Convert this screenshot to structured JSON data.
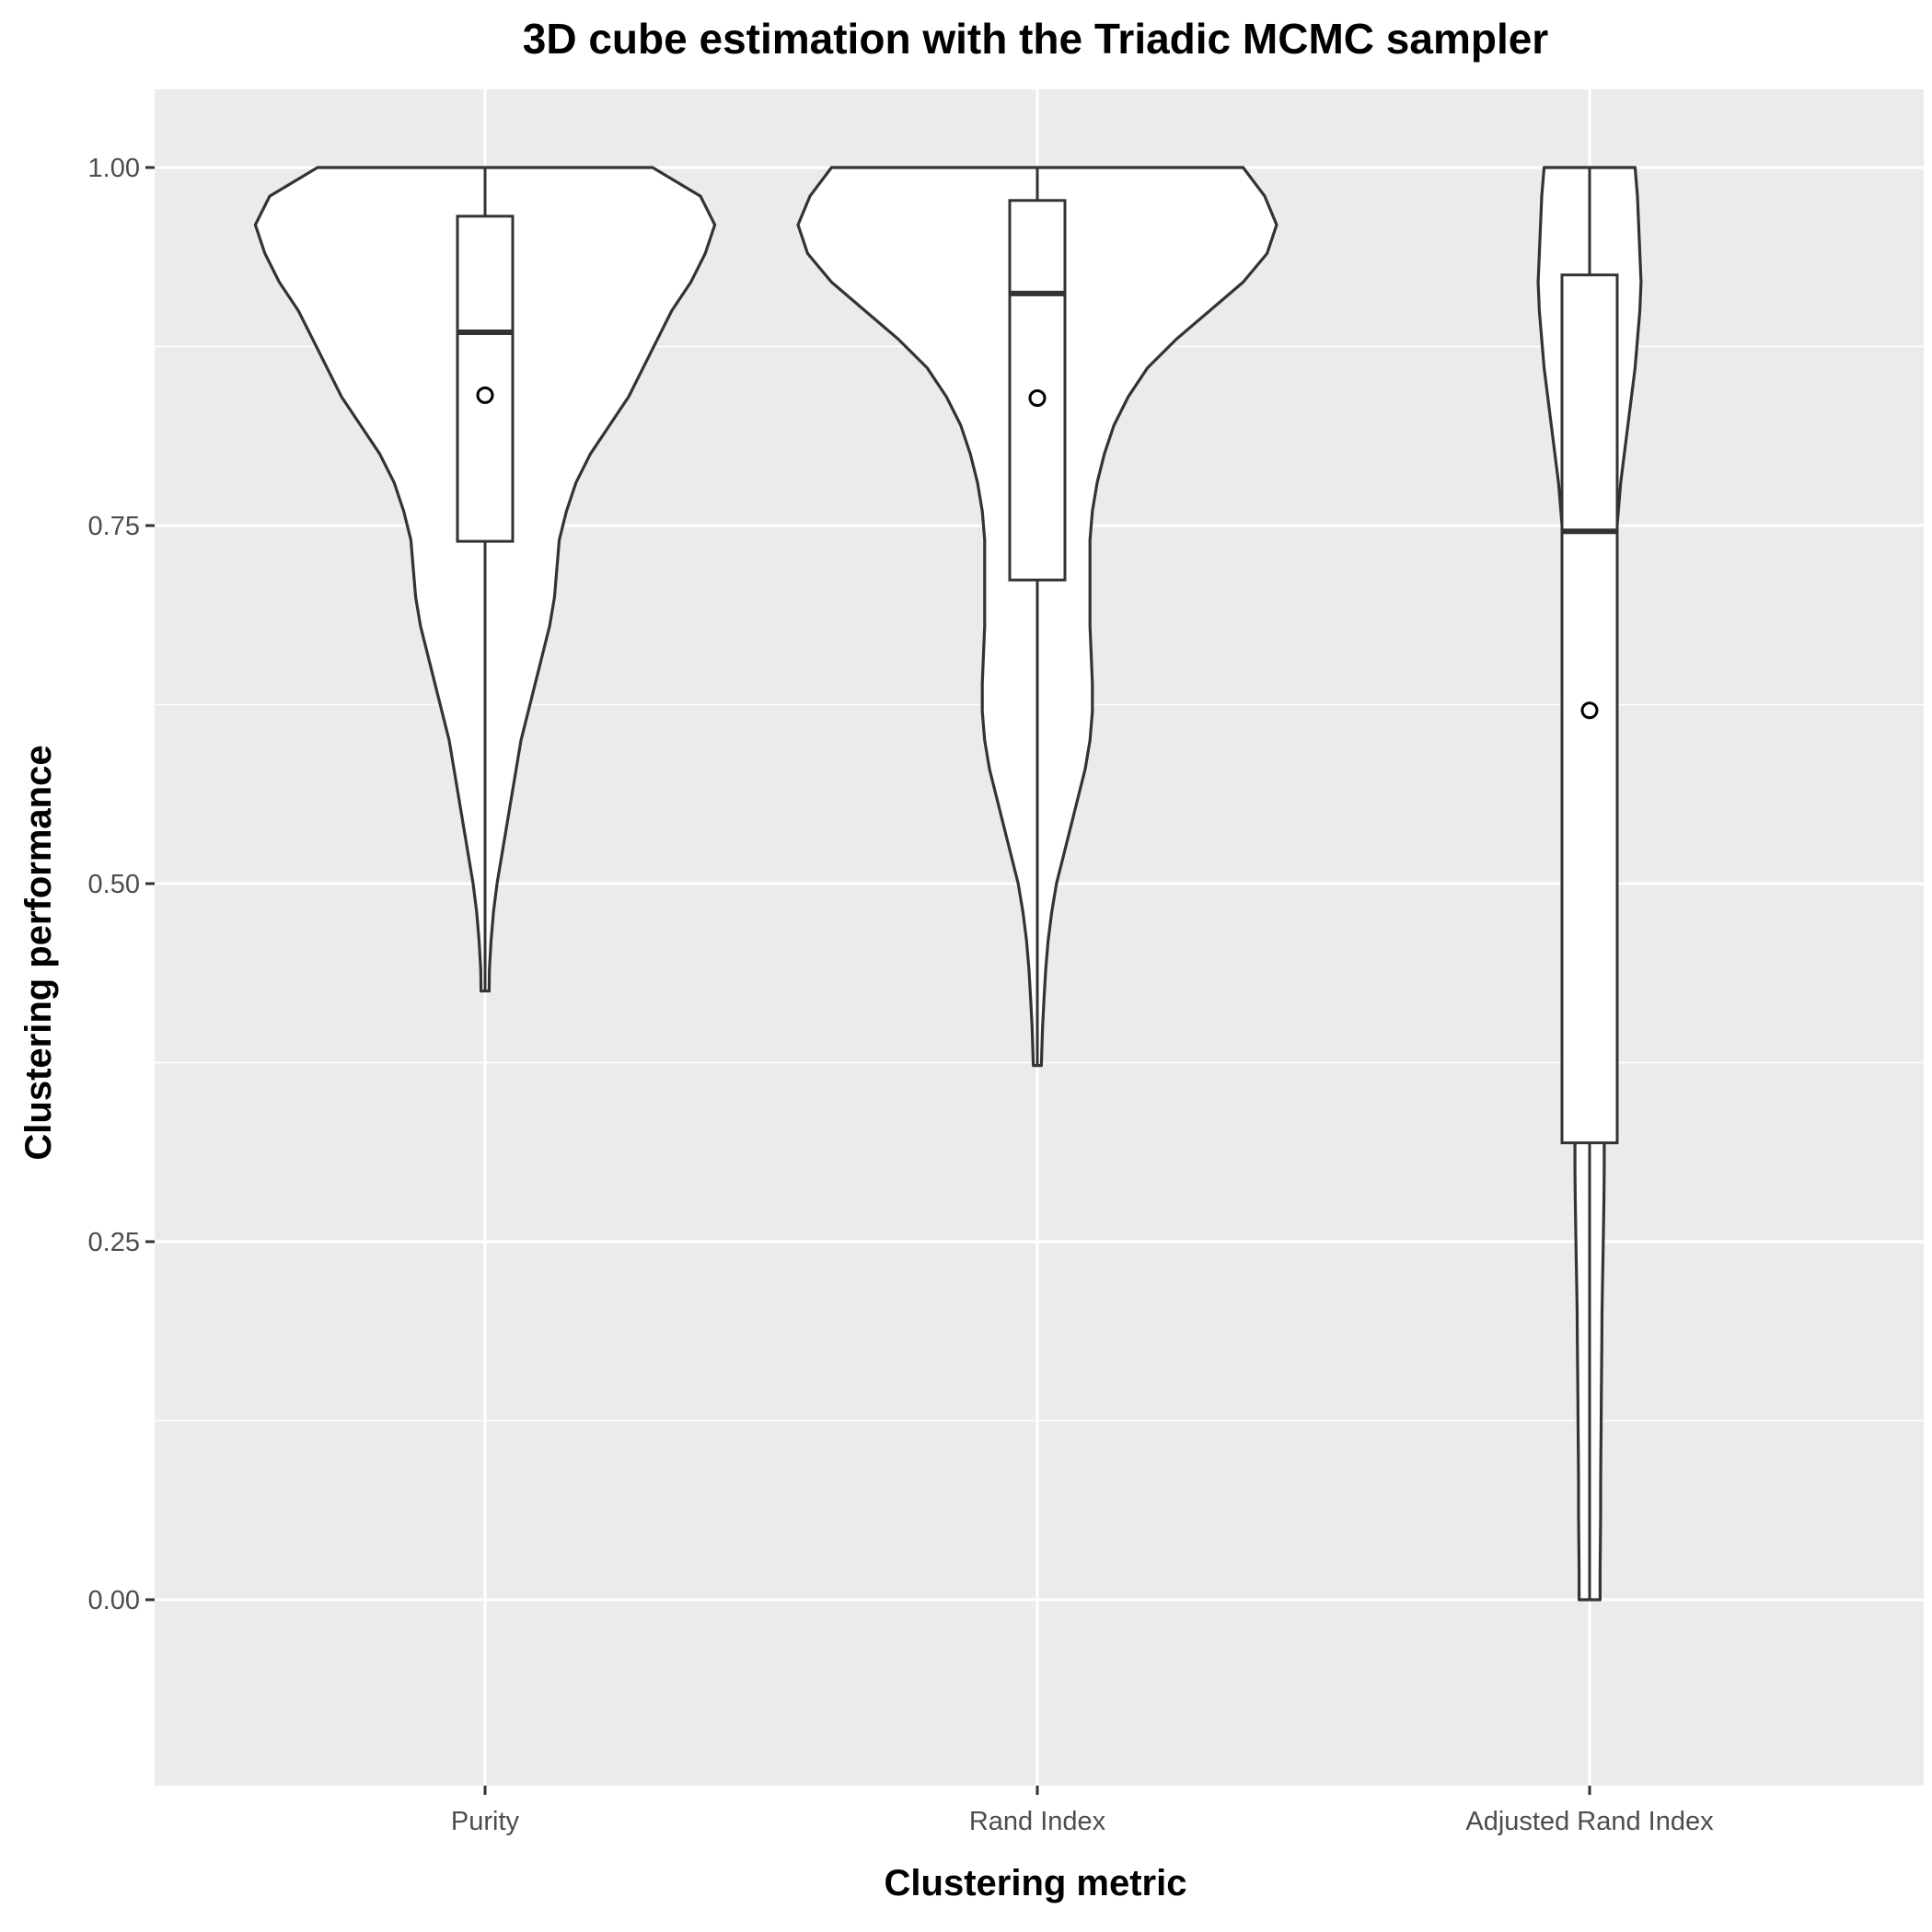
{
  "chart_data": {
    "type": "violin",
    "title": "3D cube estimation with the Triadic MCMC sampler",
    "xlabel": "Clustering metric",
    "ylabel": "Clustering performance",
    "categories": [
      "Purity",
      "Rand Index",
      "Adjusted Rand Index"
    ],
    "ylim": [
      -0.125,
      1.055
    ],
    "yticks": [
      0.0,
      0.25,
      0.5,
      0.75,
      1.0
    ],
    "ytick_labels": [
      "0.00",
      "0.25",
      "0.50",
      "0.75",
      "1.00"
    ],
    "grid": true,
    "background": "#EBEBEB",
    "series": [
      {
        "category": "Purity",
        "box": {
          "lower_whisker": 0.425,
          "q1": 0.739,
          "median": 0.885,
          "q3": 0.966,
          "upper_whisker": 1.0
        },
        "mean": 0.841,
        "violin_min": 0.425,
        "violin_max": 1.0,
        "density_profile": [
          [
            1.0,
            0.7
          ],
          [
            0.98,
            0.9
          ],
          [
            0.96,
            0.96
          ],
          [
            0.94,
            0.92
          ],
          [
            0.92,
            0.86
          ],
          [
            0.9,
            0.78
          ],
          [
            0.88,
            0.72
          ],
          [
            0.86,
            0.66
          ],
          [
            0.84,
            0.6
          ],
          [
            0.82,
            0.52
          ],
          [
            0.8,
            0.44
          ],
          [
            0.78,
            0.38
          ],
          [
            0.76,
            0.34
          ],
          [
            0.74,
            0.31
          ],
          [
            0.72,
            0.3
          ],
          [
            0.7,
            0.29
          ],
          [
            0.68,
            0.27
          ],
          [
            0.66,
            0.24
          ],
          [
            0.64,
            0.21
          ],
          [
            0.62,
            0.18
          ],
          [
            0.6,
            0.15
          ],
          [
            0.58,
            0.13
          ],
          [
            0.56,
            0.11
          ],
          [
            0.54,
            0.09
          ],
          [
            0.52,
            0.07
          ],
          [
            0.5,
            0.05
          ],
          [
            0.48,
            0.035
          ],
          [
            0.46,
            0.025
          ],
          [
            0.44,
            0.018
          ],
          [
            0.425,
            0.017
          ]
        ]
      },
      {
        "category": "Rand Index",
        "box": {
          "lower_whisker": 0.373,
          "q1": 0.712,
          "median": 0.912,
          "q3": 0.977,
          "upper_whisker": 1.0
        },
        "mean": 0.839,
        "violin_min": 0.373,
        "violin_max": 1.0,
        "density_profile": [
          [
            1.0,
            0.86
          ],
          [
            0.98,
            0.95
          ],
          [
            0.96,
            1.0
          ],
          [
            0.94,
            0.96
          ],
          [
            0.92,
            0.86
          ],
          [
            0.9,
            0.72
          ],
          [
            0.88,
            0.58
          ],
          [
            0.86,
            0.46
          ],
          [
            0.84,
            0.38
          ],
          [
            0.82,
            0.32
          ],
          [
            0.8,
            0.28
          ],
          [
            0.78,
            0.25
          ],
          [
            0.76,
            0.23
          ],
          [
            0.74,
            0.22
          ],
          [
            0.72,
            0.22
          ],
          [
            0.7,
            0.22
          ],
          [
            0.68,
            0.22
          ],
          [
            0.66,
            0.225
          ],
          [
            0.64,
            0.23
          ],
          [
            0.62,
            0.23
          ],
          [
            0.6,
            0.22
          ],
          [
            0.58,
            0.2
          ],
          [
            0.56,
            0.17
          ],
          [
            0.54,
            0.14
          ],
          [
            0.52,
            0.11
          ],
          [
            0.5,
            0.08
          ],
          [
            0.48,
            0.06
          ],
          [
            0.46,
            0.045
          ],
          [
            0.44,
            0.035
          ],
          [
            0.42,
            0.028
          ],
          [
            0.4,
            0.022
          ],
          [
            0.38,
            0.018
          ],
          [
            0.373,
            0.017
          ]
        ]
      },
      {
        "category": "Adjusted Rand Index",
        "box": {
          "lower_whisker": 0.0,
          "q1": 0.319,
          "median": 0.746,
          "q3": 0.925,
          "upper_whisker": 1.0
        },
        "mean": 0.621,
        "violin_min": 0.0,
        "violin_max": 1.0,
        "density_profile": [
          [
            1.0,
            0.19
          ],
          [
            0.98,
            0.2
          ],
          [
            0.96,
            0.205
          ],
          [
            0.94,
            0.21
          ],
          [
            0.92,
            0.215
          ],
          [
            0.9,
            0.21
          ],
          [
            0.88,
            0.2
          ],
          [
            0.86,
            0.19
          ],
          [
            0.84,
            0.175
          ],
          [
            0.82,
            0.16
          ],
          [
            0.8,
            0.145
          ],
          [
            0.78,
            0.13
          ],
          [
            0.76,
            0.12
          ],
          [
            0.74,
            0.11
          ],
          [
            0.72,
            0.1
          ],
          [
            0.7,
            0.09
          ],
          [
            0.68,
            0.082
          ],
          [
            0.66,
            0.076
          ],
          [
            0.64,
            0.07
          ],
          [
            0.62,
            0.066
          ],
          [
            0.6,
            0.062
          ],
          [
            0.58,
            0.058
          ],
          [
            0.56,
            0.055
          ],
          [
            0.54,
            0.052
          ],
          [
            0.52,
            0.05
          ],
          [
            0.5,
            0.048
          ],
          [
            0.48,
            0.047
          ],
          [
            0.46,
            0.048
          ],
          [
            0.44,
            0.05
          ],
          [
            0.42,
            0.052
          ],
          [
            0.4,
            0.054
          ],
          [
            0.38,
            0.056
          ],
          [
            0.36,
            0.058
          ],
          [
            0.34,
            0.06
          ],
          [
            0.32,
            0.061
          ],
          [
            0.3,
            0.061
          ],
          [
            0.28,
            0.06
          ],
          [
            0.26,
            0.058
          ],
          [
            0.24,
            0.056
          ],
          [
            0.22,
            0.054
          ],
          [
            0.2,
            0.052
          ],
          [
            0.18,
            0.051
          ],
          [
            0.16,
            0.05
          ],
          [
            0.14,
            0.049
          ],
          [
            0.12,
            0.048
          ],
          [
            0.1,
            0.047
          ],
          [
            0.08,
            0.046
          ],
          [
            0.06,
            0.046
          ],
          [
            0.04,
            0.045
          ],
          [
            0.02,
            0.044
          ],
          [
            0.0,
            0.044
          ]
        ]
      }
    ]
  }
}
